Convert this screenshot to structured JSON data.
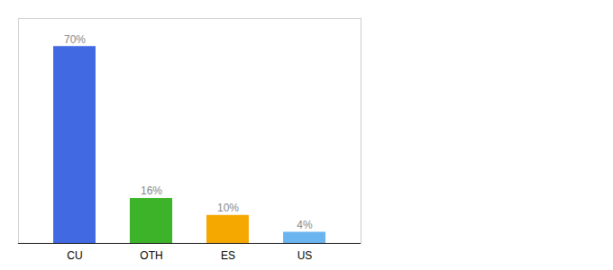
{
  "chart_data": {
    "type": "bar",
    "categories": [
      "CU",
      "OTH",
      "ES",
      "US"
    ],
    "values": [
      70,
      16,
      10,
      4
    ],
    "value_labels": [
      "70%",
      "16%",
      "10%",
      "4%"
    ],
    "colors": [
      "#4169e1",
      "#3cb328",
      "#f5a800",
      "#6ab4f0"
    ],
    "ylim": [
      0,
      80
    ],
    "data_labels": true,
    "tick_labels": "x",
    "grid": false
  }
}
